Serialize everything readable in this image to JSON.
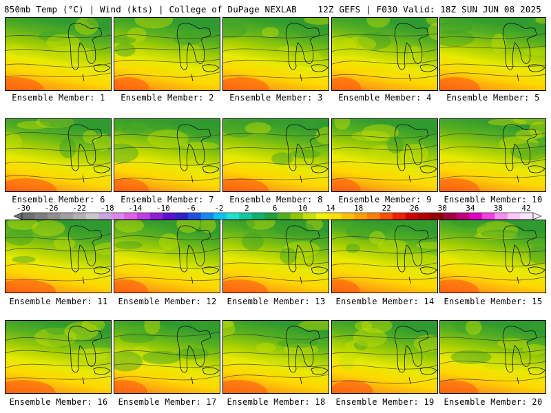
{
  "header": {
    "left_title": "850mb Temp (°C) | Wind (kts) | College of DuPage NEXLAB",
    "right_title": "12Z GEFS | F030 Valid: 18Z SUN JUN 08 2025"
  },
  "members": [
    {
      "label": "Ensemble Member: 1"
    },
    {
      "label": "Ensemble Member: 2"
    },
    {
      "label": "Ensemble Member: 3"
    },
    {
      "label": "Ensemble Member: 4"
    },
    {
      "label": "Ensemble Member: 5"
    },
    {
      "label": "Ensemble Member: 6"
    },
    {
      "label": "Ensemble Member: 7"
    },
    {
      "label": "Ensemble Member: 8"
    },
    {
      "label": "Ensemble Member: 9"
    },
    {
      "label": "Ensemble Member: 10"
    },
    {
      "label": "Ensemble Member: 11"
    },
    {
      "label": "Ensemble Member: 12"
    },
    {
      "label": "Ensemble Member: 13"
    },
    {
      "label": "Ensemble Member: 14"
    },
    {
      "label": "Ensemble Member: 15"
    },
    {
      "label": "Ensemble Member: 16"
    },
    {
      "label": "Ensemble Member: 17"
    },
    {
      "label": "Ensemble Member: 18"
    },
    {
      "label": "Ensemble Member: 19"
    },
    {
      "label": "Ensemble Member: 20"
    }
  ],
  "colorbar": {
    "tick_labels": [
      "-30",
      "-26",
      "-22",
      "-18",
      "-14",
      "-10",
      "-6",
      "-2",
      "2",
      "6",
      "10",
      "14",
      "18",
      "22",
      "26",
      "30",
      "34",
      "38",
      "42"
    ],
    "colors": [
      "#6e6e6e",
      "#7f7f7f",
      "#8f8f8f",
      "#a0a0a0",
      "#b2b2b2",
      "#c8c8c8",
      "#c9a6e0",
      "#d98ae8",
      "#e060e8",
      "#c040e0",
      "#9020d8",
      "#6010d0",
      "#3020c8",
      "#2050e0",
      "#1888f0",
      "#10c0f0",
      "#20e0d0",
      "#10c8a0",
      "#10b070",
      "#20a040",
      "#50b020",
      "#90c800",
      "#c8e000",
      "#f0f000",
      "#ffe000",
      "#ffc000",
      "#ffa000",
      "#ff8000",
      "#ff5000",
      "#f02000",
      "#d00000",
      "#b00000",
      "#900000",
      "#a00040",
      "#c00080",
      "#e000c0",
      "#f040e0",
      "#f890f0",
      "#fcc8f8",
      "#fde6fb"
    ]
  }
}
